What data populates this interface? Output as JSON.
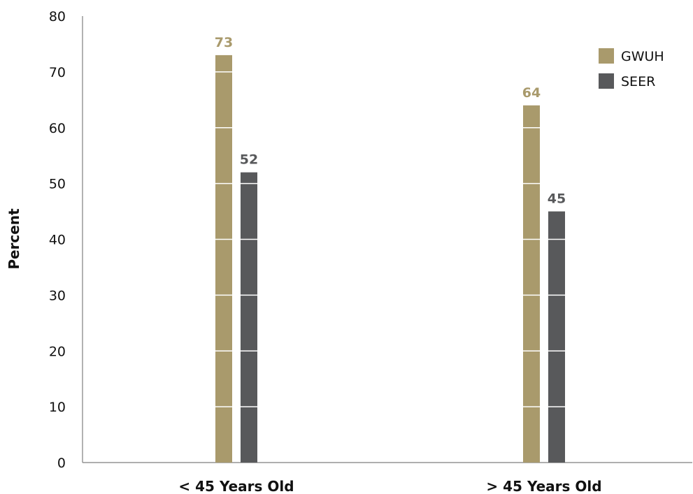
{
  "chart_data": {
    "type": "bar",
    "title": "",
    "xlabel": "",
    "ylabel": "Percent",
    "ylim": [
      0,
      80
    ],
    "yticks": [
      0,
      10,
      20,
      30,
      40,
      50,
      60,
      70,
      80
    ],
    "categories": [
      "< 45 Years Old",
      "> 45 Years Old"
    ],
    "series": [
      {
        "name": "GWUH",
        "values": [
          73,
          64
        ],
        "color": "#a99a6c"
      },
      {
        "name": "SEER",
        "values": [
          52,
          45
        ],
        "color": "#58595b"
      }
    ],
    "grid": false,
    "legend": "top-right"
  }
}
